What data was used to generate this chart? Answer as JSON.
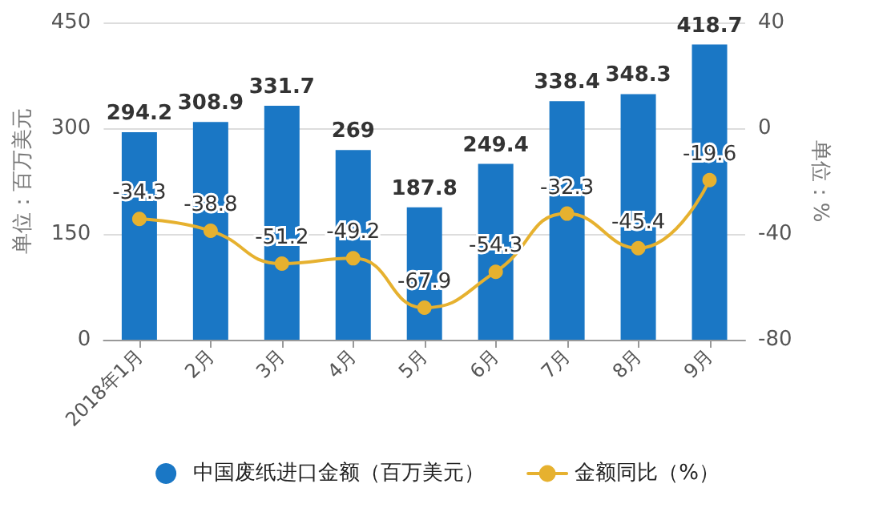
{
  "chart_data": {
    "type": "bar",
    "categories": [
      "2018年1月",
      "2月",
      "3月",
      "4月",
      "5月",
      "6月",
      "7月",
      "8月",
      "9月"
    ],
    "series": [
      {
        "name": "中国废纸进口金额（百万美元）",
        "color": "#1a77c5",
        "values": [
          294.2,
          308.9,
          331.7,
          269,
          187.8,
          249.4,
          338.4,
          348.3,
          418.7
        ]
      },
      {
        "name": "金额同比（%）",
        "type": "line",
        "axis": "y2",
        "color": "#e6b12f",
        "values": [
          -34.3,
          -38.8,
          -51.2,
          -49.2,
          -67.9,
          -54.3,
          -32.3,
          -45.4,
          -19.6
        ]
      }
    ],
    "ylabel": "单位：百万美元",
    "y2label": "单位：%",
    "ylim": [
      0,
      450
    ],
    "yticks": [
      0,
      150,
      300,
      450
    ],
    "y2lim": [
      -80,
      40
    ],
    "y2ticks": [
      -80,
      -40,
      0,
      40
    ],
    "grid": "y",
    "legend": "bottom",
    "data_labels": true,
    "marker": "circle",
    "line_style": "solid"
  }
}
